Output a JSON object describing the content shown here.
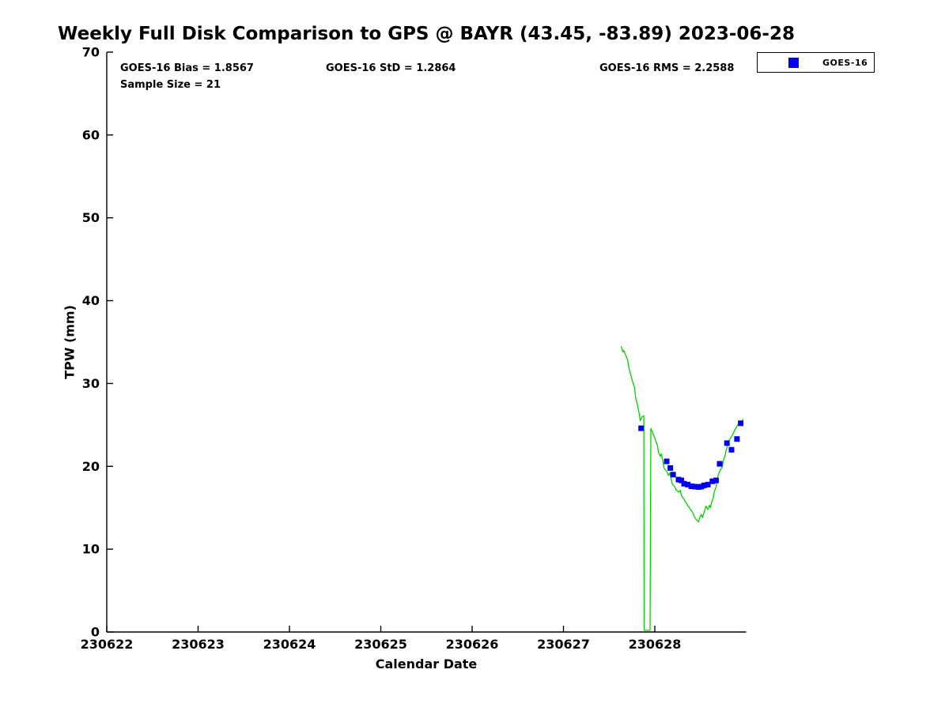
{
  "title": "Weekly Full Disk Comparison to GPS @ BAYR (43.45, -83.89) 2023-06-28",
  "stats": {
    "bias": "GOES-16 Bias = 1.8567",
    "std": "GOES-16 StD = 1.2864",
    "rms": "GOES-16 RMS = 2.2588",
    "sample_size": "Sample Size = 21"
  },
  "legend": {
    "position": "top-right",
    "entries": [
      {
        "label": "GOES-16",
        "marker": "square",
        "color": "#0000ee"
      }
    ]
  },
  "chart_data": {
    "type": "line+scatter",
    "xlabel": "Calendar Date",
    "ylabel": "TPW (mm)",
    "xlim": [
      230622,
      230629
    ],
    "ylim": [
      0,
      70
    ],
    "xticks": [
      230622,
      230623,
      230624,
      230625,
      230626,
      230627,
      230628
    ],
    "yticks": [
      0,
      10,
      20,
      30,
      40,
      50,
      60,
      70
    ],
    "grid": false,
    "axis_color": "#000000",
    "series": [
      {
        "id": "gps-tpw-line",
        "type": "line",
        "color": "#00d300",
        "width": 1.3,
        "points": [
          [
            230627.63,
            34.5
          ],
          [
            230627.65,
            33.8
          ],
          [
            230627.66,
            34.0
          ],
          [
            230627.7,
            32.9
          ],
          [
            230627.72,
            31.7
          ],
          [
            230627.75,
            30.5
          ],
          [
            230627.78,
            29.4
          ],
          [
            230627.79,
            28.3
          ],
          [
            230627.81,
            27.4
          ],
          [
            230627.83,
            26.3
          ],
          [
            230627.84,
            25.5
          ],
          [
            230627.86,
            26.0
          ],
          [
            230627.88,
            26.1
          ],
          [
            230627.883,
            0.2
          ],
          [
            230627.948,
            0.2
          ],
          [
            230627.957,
            24.6
          ],
          [
            230628.0,
            23.4
          ],
          [
            230628.03,
            22.4
          ],
          [
            230628.04,
            21.7
          ],
          [
            230628.06,
            21.2
          ],
          [
            230628.07,
            21.5
          ],
          [
            230628.09,
            20.5
          ],
          [
            230628.1,
            19.8
          ],
          [
            230628.13,
            19.4
          ],
          [
            230628.15,
            18.9
          ],
          [
            230628.165,
            19.2
          ],
          [
            230628.18,
            18.4
          ],
          [
            230628.19,
            17.9
          ],
          [
            230628.22,
            17.5
          ],
          [
            230628.23,
            17.2
          ],
          [
            230628.26,
            16.9
          ],
          [
            230628.28,
            17.1
          ],
          [
            230628.29,
            16.5
          ],
          [
            230628.32,
            16.0
          ],
          [
            230628.35,
            15.5
          ],
          [
            230628.36,
            15.3
          ],
          [
            230628.39,
            14.8
          ],
          [
            230628.41,
            14.5
          ],
          [
            230628.43,
            14.0
          ],
          [
            230628.45,
            13.6
          ],
          [
            230628.48,
            13.3
          ],
          [
            230628.49,
            13.8
          ],
          [
            230628.51,
            14.2
          ],
          [
            230628.52,
            13.8
          ],
          [
            230628.55,
            14.8
          ],
          [
            230628.56,
            15.2
          ],
          [
            230628.58,
            14.8
          ],
          [
            230628.6,
            15.3
          ],
          [
            230628.61,
            15.0
          ],
          [
            230628.62,
            15.6
          ],
          [
            230628.64,
            16.2
          ],
          [
            230628.65,
            16.9
          ],
          [
            230628.67,
            17.5
          ],
          [
            230628.68,
            18.1
          ],
          [
            230628.69,
            18.8
          ],
          [
            230628.71,
            19.4
          ],
          [
            230628.74,
            20.0
          ],
          [
            230628.75,
            20.7
          ],
          [
            230628.77,
            21.3
          ],
          [
            230628.78,
            21.9
          ],
          [
            230628.8,
            22.6
          ],
          [
            230628.81,
            23.1
          ],
          [
            230628.84,
            23.6
          ],
          [
            230628.86,
            24.0
          ],
          [
            230628.88,
            24.5
          ],
          [
            230628.91,
            25.0
          ],
          [
            230628.94,
            25.3
          ],
          [
            230628.97,
            25.7
          ]
        ]
      },
      {
        "id": "goes16-scatter",
        "name": "GOES-16",
        "type": "scatter",
        "marker": "square",
        "color": "#0000ee",
        "size": 7,
        "points": [
          [
            230627.85,
            24.6
          ],
          [
            230628.13,
            20.6
          ],
          [
            230628.17,
            19.8
          ],
          [
            230628.2,
            19.0
          ],
          [
            230628.26,
            18.4
          ],
          [
            230628.29,
            18.3
          ],
          [
            230628.32,
            17.9
          ],
          [
            230628.36,
            17.8
          ],
          [
            230628.4,
            17.6
          ],
          [
            230628.44,
            17.55
          ],
          [
            230628.48,
            17.5
          ],
          [
            230628.51,
            17.55
          ],
          [
            230628.54,
            17.7
          ],
          [
            230628.58,
            17.8
          ],
          [
            230628.63,
            18.2
          ],
          [
            230628.67,
            18.3
          ],
          [
            230628.71,
            20.3
          ],
          [
            230628.79,
            22.8
          ],
          [
            230628.84,
            22.0
          ],
          [
            230628.9,
            23.3
          ],
          [
            230628.94,
            25.2
          ]
        ]
      }
    ]
  }
}
